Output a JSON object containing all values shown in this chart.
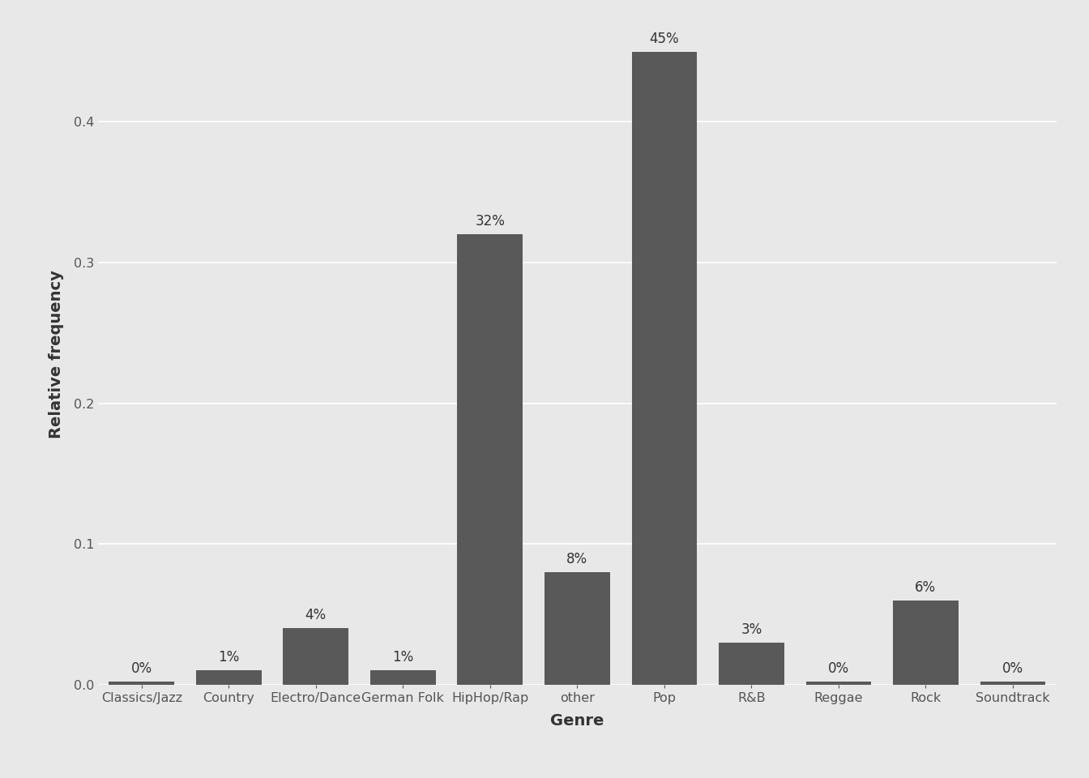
{
  "categories": [
    "Classics/Jazz",
    "Country",
    "Electro/Dance",
    "German Folk",
    "HipHop/Rap",
    "other",
    "Pop",
    "R&B",
    "Reggae",
    "Rock",
    "Soundtrack"
  ],
  "values": [
    0.002,
    0.01,
    0.04,
    0.01,
    0.32,
    0.08,
    0.45,
    0.03,
    0.002,
    0.06,
    0.002
  ],
  "labels": [
    "0%",
    "1%",
    "4%",
    "1%",
    "32%",
    "8%",
    "45%",
    "3%",
    "0%",
    "6%",
    "0%"
  ],
  "bar_color": "#595959",
  "background_color": "#E8E8E8",
  "panel_background": "#E8E8E8",
  "grid_color": "#FFFFFF",
  "ylabel": "Relative frequency",
  "xlabel": "Genre",
  "ylim": [
    0,
    0.47
  ],
  "yticks": [
    0.0,
    0.1,
    0.2,
    0.3,
    0.4
  ],
  "label_fontsize": 12,
  "axis_label_fontsize": 14,
  "tick_fontsize": 11.5
}
